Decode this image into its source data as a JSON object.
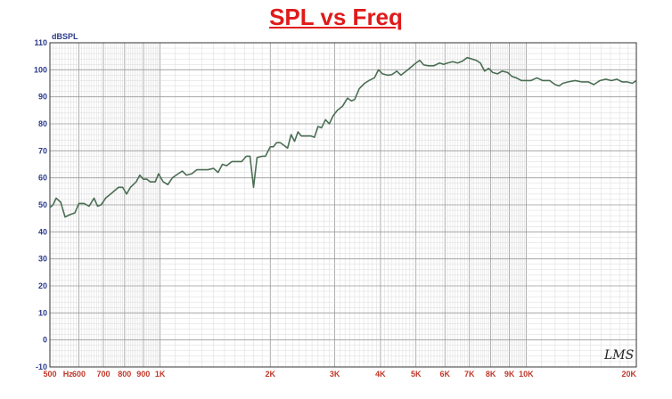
{
  "chart_data": {
    "type": "line",
    "title": "SPL vs Freq",
    "ylabel": "dBSPL",
    "xlabel": "",
    "x_scale": "log",
    "xlim": [
      500,
      20000
    ],
    "ylim": [
      -10,
      110
    ],
    "y_ticks": [
      -10,
      0,
      10,
      20,
      30,
      40,
      50,
      60,
      70,
      80,
      90,
      100,
      110
    ],
    "x_ticks": [
      {
        "value": 500,
        "label": "500"
      },
      {
        "value": 560,
        "label": "Hz"
      },
      {
        "value": 600,
        "label": "600"
      },
      {
        "value": 700,
        "label": "700"
      },
      {
        "value": 800,
        "label": "800"
      },
      {
        "value": 900,
        "label": "900"
      },
      {
        "value": 1000,
        "label": "1K"
      },
      {
        "value": 2000,
        "label": "2K"
      },
      {
        "value": 3000,
        "label": "3K"
      },
      {
        "value": 4000,
        "label": "4K"
      },
      {
        "value": 5000,
        "label": "5K"
      },
      {
        "value": 6000,
        "label": "6K"
      },
      {
        "value": 7000,
        "label": "7K"
      },
      {
        "value": 8000,
        "label": "8K"
      },
      {
        "value": 9000,
        "label": "9K"
      },
      {
        "value": 10000,
        "label": "10K"
      },
      {
        "value": 20000,
        "label": "20K"
      }
    ],
    "grid": true,
    "series": [
      {
        "color": "#4a6e54",
        "points": [
          [
            500,
            49
          ],
          [
            510,
            50
          ],
          [
            520,
            52.5
          ],
          [
            535,
            51
          ],
          [
            550,
            45.5
          ],
          [
            570,
            46.5
          ],
          [
            585,
            47
          ],
          [
            600,
            50.5
          ],
          [
            620,
            50.5
          ],
          [
            640,
            49.5
          ],
          [
            660,
            52.5
          ],
          [
            675,
            49.5
          ],
          [
            690,
            50
          ],
          [
            710,
            52.5
          ],
          [
            740,
            54.5
          ],
          [
            770,
            56.5
          ],
          [
            790,
            56.5
          ],
          [
            810,
            54
          ],
          [
            830,
            56.5
          ],
          [
            860,
            58.5
          ],
          [
            880,
            61
          ],
          [
            900,
            59.5
          ],
          [
            920,
            59.5
          ],
          [
            940,
            58.5
          ],
          [
            970,
            58.5
          ],
          [
            990,
            61.5
          ],
          [
            1020,
            58.5
          ],
          [
            1050,
            57.5
          ],
          [
            1080,
            60
          ],
          [
            1120,
            61.5
          ],
          [
            1150,
            62.5
          ],
          [
            1180,
            61
          ],
          [
            1220,
            61.5
          ],
          [
            1260,
            63
          ],
          [
            1300,
            63
          ],
          [
            1350,
            63
          ],
          [
            1400,
            63.5
          ],
          [
            1440,
            62
          ],
          [
            1480,
            65
          ],
          [
            1520,
            64.5
          ],
          [
            1570,
            66
          ],
          [
            1620,
            66
          ],
          [
            1670,
            66
          ],
          [
            1720,
            68
          ],
          [
            1760,
            68
          ],
          [
            1800,
            56.5
          ],
          [
            1840,
            67.5
          ],
          [
            1900,
            68
          ],
          [
            1940,
            68
          ],
          [
            2000,
            71.5
          ],
          [
            2040,
            71.5
          ],
          [
            2080,
            73
          ],
          [
            2130,
            73
          ],
          [
            2180,
            72
          ],
          [
            2230,
            71
          ],
          [
            2280,
            76
          ],
          [
            2330,
            73.5
          ],
          [
            2380,
            77
          ],
          [
            2430,
            75.5
          ],
          [
            2500,
            75.5
          ],
          [
            2580,
            75.5
          ],
          [
            2640,
            75
          ],
          [
            2700,
            79
          ],
          [
            2760,
            78.5
          ],
          [
            2830,
            81.5
          ],
          [
            2900,
            80
          ],
          [
            2970,
            83
          ],
          [
            3050,
            85
          ],
          [
            3150,
            86.5
          ],
          [
            3250,
            89.5
          ],
          [
            3330,
            88.5
          ],
          [
            3400,
            89
          ],
          [
            3500,
            93
          ],
          [
            3620,
            95
          ],
          [
            3720,
            96
          ],
          [
            3850,
            97
          ],
          [
            3950,
            100
          ],
          [
            4050,
            98.5
          ],
          [
            4180,
            98
          ],
          [
            4300,
            98.2
          ],
          [
            4430,
            99.5
          ],
          [
            4550,
            98
          ],
          [
            4700,
            99.5
          ],
          [
            4850,
            101
          ],
          [
            5000,
            102.5
          ],
          [
            5120,
            103.5
          ],
          [
            5250,
            101.8
          ],
          [
            5400,
            101.5
          ],
          [
            5600,
            101.5
          ],
          [
            5800,
            102.5
          ],
          [
            5950,
            102
          ],
          [
            6100,
            102.5
          ],
          [
            6300,
            103
          ],
          [
            6500,
            102.5
          ],
          [
            6700,
            103.2
          ],
          [
            6900,
            104.5
          ],
          [
            7100,
            104
          ],
          [
            7300,
            103.5
          ],
          [
            7500,
            102.5
          ],
          [
            7700,
            99.5
          ],
          [
            7900,
            100.5
          ],
          [
            8100,
            99
          ],
          [
            8350,
            98.5
          ],
          [
            8600,
            99.5
          ],
          [
            8900,
            99
          ],
          [
            9150,
            97.5
          ],
          [
            9400,
            97
          ],
          [
            9700,
            96
          ],
          [
            10000,
            96
          ],
          [
            10300,
            96
          ],
          [
            10700,
            97
          ],
          [
            11100,
            96
          ],
          [
            11600,
            96
          ],
          [
            12000,
            94.5
          ],
          [
            12300,
            94
          ],
          [
            12600,
            95
          ],
          [
            13000,
            95.5
          ],
          [
            13600,
            96
          ],
          [
            14200,
            95.5
          ],
          [
            14800,
            95.5
          ],
          [
            15300,
            94.5
          ],
          [
            15900,
            96
          ],
          [
            16500,
            96.5
          ],
          [
            17100,
            96
          ],
          [
            17700,
            96.5
          ],
          [
            18300,
            95.5
          ],
          [
            18900,
            95.5
          ],
          [
            19500,
            95
          ],
          [
            20000,
            96
          ]
        ]
      }
    ]
  },
  "watermark": "LMS"
}
